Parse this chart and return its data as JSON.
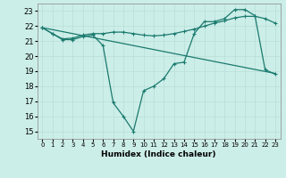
{
  "xlabel": "Humidex (Indice chaleur)",
  "bg_color": "#cceee8",
  "line_color": "#1a7a6e",
  "grid_color": "#b8ddd8",
  "xlim": [
    -0.5,
    23.5
  ],
  "ylim": [
    14.5,
    23.5
  ],
  "yticks": [
    15,
    16,
    17,
    18,
    19,
    20,
    21,
    22,
    23
  ],
  "xticks": [
    0,
    1,
    2,
    3,
    4,
    5,
    6,
    7,
    8,
    9,
    10,
    11,
    12,
    13,
    14,
    15,
    16,
    17,
    18,
    19,
    20,
    21,
    22,
    23
  ],
  "line1": {
    "x": [
      0,
      1,
      2,
      3,
      4,
      5,
      6,
      7,
      8,
      9,
      10,
      11,
      12,
      13,
      14,
      15,
      16,
      17,
      18,
      19,
      20,
      21,
      22,
      23
    ],
    "y": [
      21.9,
      21.5,
      21.1,
      21.1,
      21.3,
      21.4,
      20.7,
      16.9,
      16.0,
      15.0,
      17.7,
      18.0,
      18.5,
      19.5,
      19.6,
      21.5,
      22.3,
      22.3,
      22.5,
      23.1,
      23.1,
      22.7,
      19.1,
      18.8
    ]
  },
  "line2": {
    "x": [
      0,
      1,
      2,
      3,
      4,
      5,
      6,
      7,
      8,
      9,
      10,
      11,
      12,
      13,
      14,
      15,
      16,
      17,
      18,
      19,
      20,
      21,
      22,
      23
    ],
    "y": [
      21.9,
      21.5,
      21.15,
      21.2,
      21.4,
      21.5,
      21.5,
      21.6,
      21.6,
      21.5,
      21.4,
      21.35,
      21.4,
      21.5,
      21.65,
      21.8,
      22.0,
      22.2,
      22.35,
      22.55,
      22.65,
      22.65,
      22.5,
      22.2
    ]
  },
  "line3": {
    "x": [
      0,
      23
    ],
    "y": [
      21.9,
      18.85
    ]
  }
}
